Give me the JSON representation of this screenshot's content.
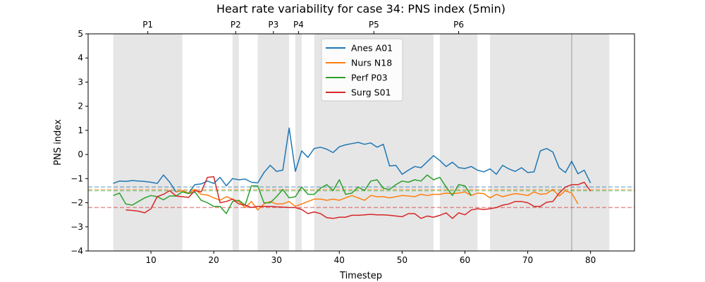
{
  "chart_data": {
    "type": "line",
    "title": "Heart rate variability for case 34: PNS index (5min)",
    "xlabel": "Timestep",
    "ylabel": "PNS index",
    "xlim": [
      0,
      87
    ],
    "ylim": [
      -4,
      5
    ],
    "xticks": [
      10,
      20,
      30,
      40,
      50,
      60,
      70,
      80
    ],
    "yticks": [
      -4,
      -3,
      -2,
      -1,
      0,
      1,
      2,
      3,
      4,
      5
    ],
    "grid": false,
    "legend_position": "upper center",
    "phases": [
      {
        "label": "P1",
        "start": 4,
        "end": 15
      },
      {
        "label": "P2",
        "start": 23,
        "end": 24
      },
      {
        "label": "P3",
        "start": 27,
        "end": 32
      },
      {
        "label": "P4",
        "start": 33,
        "end": 34
      },
      {
        "label": "P5",
        "start": 36,
        "end": 55
      },
      {
        "label": "P6",
        "start": 56,
        "end": 62
      }
    ],
    "extra_shaded_regions": [
      {
        "start": 64,
        "end": 83
      }
    ],
    "vertical_lines": [
      77
    ],
    "series": [
      {
        "name": "Anes A01",
        "color": "#1f77b4",
        "baseline": -1.35,
        "x": [
          4,
          5,
          6,
          7,
          8,
          9,
          10,
          11,
          12,
          13,
          14,
          15,
          16,
          17,
          18,
          19,
          20,
          21,
          22,
          23,
          24,
          25,
          26,
          27,
          28,
          29,
          30,
          31,
          32,
          33,
          34,
          35,
          36,
          37,
          38,
          39,
          40,
          41,
          42,
          43,
          44,
          45,
          46,
          47,
          48,
          49,
          50,
          51,
          52,
          53,
          54,
          55,
          56,
          57,
          58,
          59,
          60,
          61,
          62,
          63,
          64,
          65,
          66,
          67,
          68,
          69,
          70,
          71,
          72,
          73,
          74,
          75,
          76,
          77,
          78,
          79,
          80
        ],
        "y": [
          -1.2,
          -1.1,
          -1.12,
          -1.08,
          -1.1,
          -1.12,
          -1.15,
          -1.2,
          -0.85,
          -1.15,
          -1.55,
          -1.5,
          -1.6,
          -1.25,
          -1.22,
          -1.1,
          -1.2,
          -0.95,
          -1.3,
          -1.0,
          -1.05,
          -1.02,
          -1.15,
          -1.18,
          -0.75,
          -0.45,
          -0.7,
          -0.65,
          1.1,
          -0.7,
          0.15,
          -0.12,
          0.25,
          0.3,
          0.22,
          0.08,
          0.32,
          0.4,
          0.45,
          0.5,
          0.42,
          0.48,
          0.3,
          0.42,
          -0.48,
          -0.45,
          -0.82,
          -0.65,
          -0.5,
          -0.55,
          -0.3,
          -0.05,
          -0.25,
          -0.5,
          -0.32,
          -0.55,
          -0.58,
          -0.5,
          -0.65,
          -0.72,
          -0.6,
          -0.82,
          -0.45,
          -0.6,
          -0.7,
          -0.55,
          -0.75,
          -0.72,
          0.15,
          0.25,
          0.1,
          -0.55,
          -0.75,
          -0.28,
          -0.8,
          -0.65,
          -1.18
        ]
      },
      {
        "name": "Nurs N18",
        "color": "#ff7f0e",
        "baseline": -1.45,
        "x": [
          14,
          15,
          16,
          17,
          18,
          19,
          20,
          21,
          22,
          23,
          24,
          25,
          26,
          27,
          28,
          29,
          30,
          31,
          32,
          33,
          34,
          35,
          36,
          37,
          38,
          39,
          40,
          41,
          42,
          43,
          44,
          45,
          46,
          47,
          48,
          49,
          50,
          51,
          52,
          53,
          54,
          55,
          56,
          57,
          58,
          59,
          60,
          61,
          62,
          63,
          64,
          65,
          66,
          67,
          68,
          69,
          70,
          71,
          72,
          73,
          74,
          75,
          76,
          77,
          78
        ],
        "y": [
          -1.55,
          -1.5,
          -1.6,
          -1.45,
          -1.65,
          -1.68,
          -1.8,
          -1.9,
          -1.75,
          -1.85,
          -1.95,
          -2.2,
          -1.95,
          -2.3,
          -2.05,
          -1.95,
          -2.05,
          -2.05,
          -1.95,
          -2.15,
          -2.05,
          -1.95,
          -1.85,
          -1.85,
          -1.9,
          -1.85,
          -1.9,
          -1.8,
          -1.7,
          -1.8,
          -1.9,
          -1.7,
          -1.75,
          -1.75,
          -1.8,
          -1.75,
          -1.7,
          -1.72,
          -1.75,
          -1.65,
          -1.7,
          -1.65,
          -1.65,
          -1.6,
          -1.62,
          -1.6,
          -1.55,
          -1.7,
          -1.6,
          -1.62,
          -1.8,
          -1.65,
          -1.75,
          -1.68,
          -1.62,
          -1.65,
          -1.7,
          -1.55,
          -1.65,
          -1.62,
          -1.45,
          -1.72,
          -1.5,
          -1.6,
          -2.05
        ]
      },
      {
        "name": "Perf P03",
        "color": "#2ca02c",
        "baseline": -1.5,
        "x": [
          4,
          5,
          6,
          7,
          8,
          9,
          10,
          11,
          12,
          13,
          14,
          15,
          16,
          17,
          18,
          19,
          20,
          21,
          22,
          23,
          24,
          25,
          26,
          27,
          28,
          29,
          30,
          31,
          32,
          33,
          34,
          35,
          36,
          37,
          38,
          39,
          40,
          41,
          42,
          43,
          44,
          45,
          46,
          47,
          48,
          49,
          50,
          51,
          52,
          53,
          54,
          55,
          56,
          57,
          58,
          59,
          60,
          61
        ],
        "y": [
          -1.7,
          -1.6,
          -2.05,
          -2.1,
          -1.95,
          -1.8,
          -1.7,
          -1.75,
          -1.88,
          -1.72,
          -1.72,
          -1.55,
          -1.62,
          -1.55,
          -1.9,
          -2.0,
          -2.15,
          -2.15,
          -2.45,
          -1.95,
          -1.9,
          -2.1,
          -1.3,
          -1.3,
          -2.0,
          -2.0,
          -1.75,
          -1.45,
          -1.8,
          -1.75,
          -1.35,
          -1.65,
          -1.65,
          -1.4,
          -1.25,
          -1.5,
          -1.05,
          -1.65,
          -1.6,
          -1.35,
          -1.5,
          -1.1,
          -1.05,
          -1.4,
          -1.45,
          -1.25,
          -1.1,
          -1.15,
          -1.05,
          -1.1,
          -0.85,
          -1.05,
          -0.95,
          -1.35,
          -1.7,
          -1.25,
          -1.3,
          -1.7
        ]
      },
      {
        "name": "Surg S01",
        "color": "#d62728",
        "baseline": -2.2,
        "x": [
          6,
          7,
          8,
          9,
          10,
          11,
          12,
          13,
          14,
          15,
          16,
          17,
          18,
          19,
          20,
          21,
          22,
          23,
          24,
          25,
          26,
          27,
          28,
          29,
          30,
          31,
          32,
          33,
          34,
          35,
          36,
          37,
          38,
          39,
          40,
          41,
          42,
          43,
          44,
          45,
          46,
          47,
          48,
          49,
          50,
          51,
          52,
          53,
          54,
          55,
          56,
          57,
          58,
          59,
          60,
          61,
          62,
          63,
          64,
          65,
          66,
          67,
          68,
          69,
          70,
          71,
          72,
          73,
          74,
          75,
          76,
          77,
          78,
          79,
          80
        ],
        "y": [
          -2.3,
          -2.32,
          -2.35,
          -2.42,
          -2.25,
          -1.75,
          -1.65,
          -1.5,
          -1.72,
          -1.75,
          -1.78,
          -1.5,
          -1.55,
          -0.95,
          -0.92,
          -2.0,
          -1.95,
          -1.85,
          -2.05,
          -2.1,
          -2.2,
          -2.15,
          -2.15,
          -2.15,
          -2.17,
          -2.18,
          -2.2,
          -2.2,
          -2.28,
          -2.45,
          -2.38,
          -2.45,
          -2.62,
          -2.65,
          -2.6,
          -2.6,
          -2.52,
          -2.52,
          -2.5,
          -2.48,
          -2.5,
          -2.5,
          -2.52,
          -2.55,
          -2.58,
          -2.45,
          -2.45,
          -2.65,
          -2.55,
          -2.6,
          -2.52,
          -2.42,
          -2.65,
          -2.42,
          -2.5,
          -2.3,
          -2.25,
          -2.28,
          -2.25,
          -2.2,
          -2.1,
          -2.05,
          -1.95,
          -1.95,
          -2.0,
          -2.15,
          -2.15,
          -1.98,
          -1.95,
          -1.6,
          -1.35,
          -1.25,
          -1.25,
          -1.15,
          -1.52
        ]
      }
    ]
  }
}
